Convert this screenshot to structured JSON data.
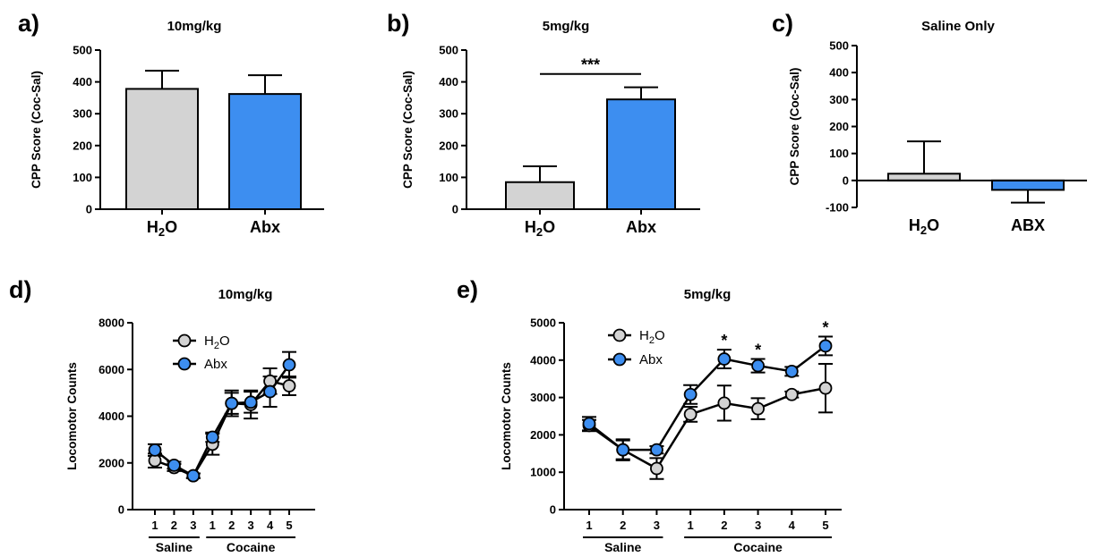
{
  "colors": {
    "h2o": "#d3d3d3",
    "abx": "#3d8ef0",
    "axis": "#000000"
  },
  "chart_data": [
    {
      "type": "bar",
      "panel_label": "a)",
      "title": "10mg/kg",
      "ylabel": "CPP Score (Coc-Sal)",
      "ylim": [
        0,
        500
      ],
      "yticks": [
        "0",
        "100",
        "200",
        "300",
        "400",
        "500"
      ],
      "categories": [
        {
          "base": "H",
          "sub": "2",
          "tail": "O"
        },
        {
          "base": "Abx",
          "sub": "",
          "tail": ""
        }
      ],
      "values": [
        378,
        362
      ],
      "errors": [
        57,
        59
      ],
      "significance": []
    },
    {
      "type": "bar",
      "panel_label": "b)",
      "title": "5mg/kg",
      "ylabel": "CPP Score (Coc-Sal)",
      "ylim": [
        0,
        500
      ],
      "yticks": [
        "0",
        "100",
        "200",
        "300",
        "400",
        "500"
      ],
      "categories": [
        {
          "base": "H",
          "sub": "2",
          "tail": "O"
        },
        {
          "base": "Abx",
          "sub": "",
          "tail": ""
        }
      ],
      "values": [
        85,
        345
      ],
      "errors": [
        50,
        38
      ],
      "significance": [
        {
          "from": 0,
          "to": 1,
          "y": 425,
          "label": "***"
        }
      ]
    },
    {
      "type": "bar",
      "panel_label": "c)",
      "title": "Saline Only",
      "ylabel": "CPP Score (Coc-Sal)",
      "ylim": [
        -100,
        500
      ],
      "yticks": [
        "-100",
        "0",
        "100",
        "200",
        "300",
        "400",
        "500"
      ],
      "categories": [
        {
          "base": "H",
          "sub": "2",
          "tail": "O"
        },
        {
          "base": "ABX",
          "sub": "",
          "tail": ""
        }
      ],
      "values": [
        25,
        -35
      ],
      "errors": [
        120,
        47
      ],
      "significance": []
    },
    {
      "type": "line",
      "panel_label": "d)",
      "title": "10mg/kg",
      "ylabel": "Locomotor Counts",
      "ylim": [
        0,
        8000
      ],
      "yticks": [
        "0",
        "2000",
        "4000",
        "6000",
        "8000"
      ],
      "x": [
        "1",
        "2",
        "3",
        "1",
        "2",
        "3",
        "4",
        "5"
      ],
      "groups": [
        {
          "label": "Saline",
          "from": 0,
          "to": 2
        },
        {
          "label": "Cocaine",
          "from": 3,
          "to": 7
        }
      ],
      "legend_position": "top-left",
      "series": [
        {
          "name": "H",
          "sub": "2",
          "tail": "O",
          "color_key": "h2o",
          "values": [
            2100,
            1800,
            1450,
            2800,
            4550,
            4500,
            5500,
            5300
          ],
          "errors": [
            300,
            150,
            100,
            450,
            550,
            600,
            550,
            400
          ]
        },
        {
          "name": "Abx",
          "sub": "",
          "tail": "",
          "color_key": "abx",
          "values": [
            2550,
            1900,
            1450,
            3100,
            4550,
            4600,
            5050,
            6200
          ],
          "errors": [
            250,
            150,
            100,
            200,
            450,
            450,
            650,
            550
          ]
        }
      ],
      "significance": []
    },
    {
      "type": "line",
      "panel_label": "e)",
      "title": "5mg/kg",
      "ylabel": "Locomotor Counts",
      "ylim": [
        0,
        5000
      ],
      "yticks": [
        "0",
        "1000",
        "2000",
        "3000",
        "4000",
        "5000"
      ],
      "x": [
        "1",
        "2",
        "3",
        "1",
        "2",
        "3",
        "4",
        "5"
      ],
      "groups": [
        {
          "label": "Saline",
          "from": 0,
          "to": 2
        },
        {
          "label": "Cocaine",
          "from": 3,
          "to": 7
        }
      ],
      "legend_position": "top-left",
      "series": [
        {
          "name": "H",
          "sub": "2",
          "tail": "O",
          "color_key": "h2o",
          "values": [
            2250,
            1600,
            1100,
            2550,
            2850,
            2700,
            3080,
            3250
          ],
          "errors": [
            150,
            250,
            280,
            200,
            470,
            280,
            80,
            650
          ]
        },
        {
          "name": "Abx",
          "sub": "",
          "tail": "",
          "color_key": "abx",
          "values": [
            2300,
            1600,
            1600,
            3080,
            4030,
            3850,
            3700,
            4380
          ],
          "errors": [
            180,
            280,
            100,
            250,
            250,
            180,
            120,
            250
          ]
        }
      ],
      "significance": [
        {
          "index": 4,
          "label": "*"
        },
        {
          "index": 5,
          "label": "*"
        },
        {
          "index": 7,
          "label": "*"
        }
      ]
    }
  ]
}
